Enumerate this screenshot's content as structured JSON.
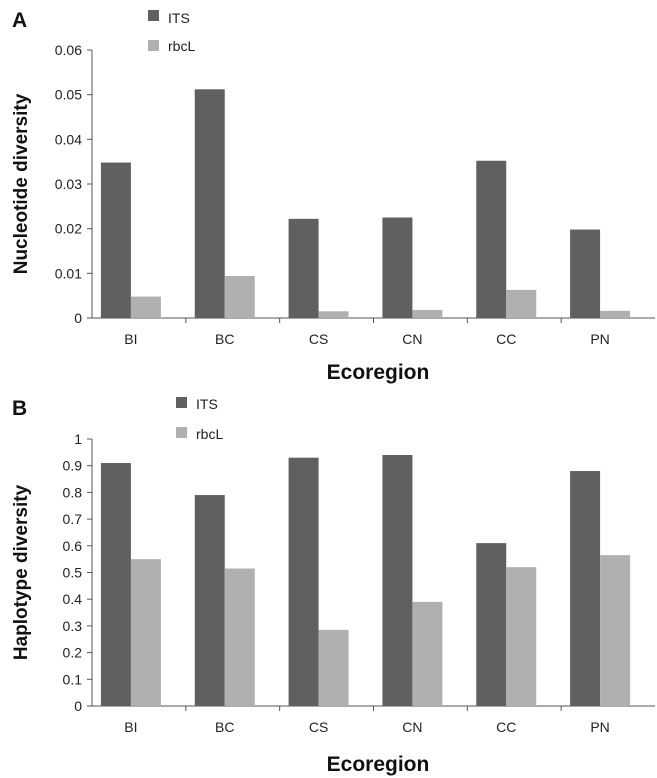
{
  "colors": {
    "its": "#606060",
    "rbcl": "#b0b0b0"
  },
  "chart_data": [
    {
      "type": "bar",
      "panel_label": "A",
      "ylabel": "Nucleotide diversity",
      "xlabel": "Ecoregion",
      "categories": [
        "BI",
        "BC",
        "CS",
        "CN",
        "CC",
        "PN"
      ],
      "ylim": [
        0,
        0.06
      ],
      "yticks": [
        "0",
        "0.01",
        "0.02",
        "0.03",
        "0.04",
        "0.05",
        "0.06"
      ],
      "grid": false,
      "legend": "top-left",
      "series": [
        {
          "name": "ITS",
          "values": [
            0.0348,
            0.0512,
            0.0222,
            0.0225,
            0.0352,
            0.0198
          ]
        },
        {
          "name": "rbcL",
          "values": [
            0.0048,
            0.0094,
            0.0015,
            0.0018,
            0.0063,
            0.0016
          ]
        }
      ]
    },
    {
      "type": "bar",
      "panel_label": "B",
      "ylabel": "Haplotype diversity",
      "xlabel": "Ecoregion",
      "categories": [
        "BI",
        "BC",
        "CS",
        "CN",
        "CC",
        "PN"
      ],
      "ylim": [
        0,
        1
      ],
      "yticks": [
        "0",
        "0.1",
        "0.2",
        "0.3",
        "0.4",
        "0.5",
        "0.6",
        "0.7",
        "0.8",
        "0.9",
        "1"
      ],
      "grid": false,
      "legend": "top-left",
      "series": [
        {
          "name": "ITS",
          "values": [
            0.91,
            0.79,
            0.93,
            0.94,
            0.61,
            0.88
          ]
        },
        {
          "name": "rbcL",
          "values": [
            0.55,
            0.515,
            0.285,
            0.39,
            0.52,
            0.565
          ]
        }
      ]
    }
  ]
}
